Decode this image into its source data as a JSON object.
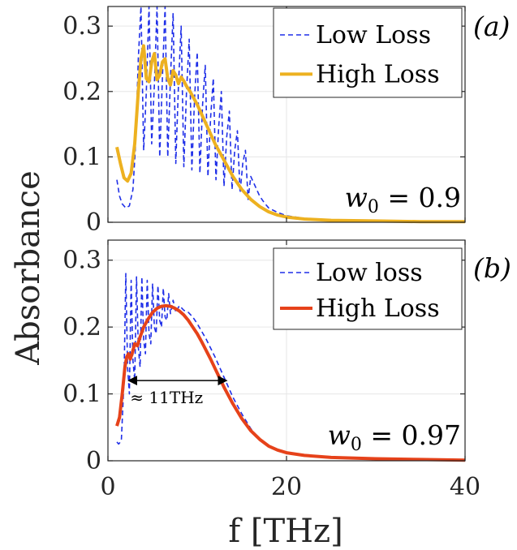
{
  "figure": {
    "ylabel": "Absorbance",
    "xlabel": "f [THz]"
  },
  "colors": {
    "low_loss": "#1f2fe8",
    "high_loss_a": "#edb120",
    "high_loss_b": "#e6421a",
    "axis": "#262626",
    "grid": "#e6e6e6"
  },
  "chart_data": [
    {
      "type": "line",
      "panel_label": "(a)",
      "annotation": "w0 = 0.9",
      "annotation_main": "w",
      "annotation_sub": "0",
      "annotation_rest": " = 0.9",
      "xlim": [
        0,
        40
      ],
      "ylim": [
        0,
        0.33
      ],
      "xticks": [
        0,
        20,
        40
      ],
      "yticks": [
        0,
        0.1,
        0.2,
        0.3
      ],
      "ytick_labels": [
        "0",
        "0.1",
        "0.2",
        "0.3"
      ],
      "xtick_labels_shown": false,
      "grid": true,
      "legend_position": "top-right",
      "series": [
        {
          "name": "Low Loss",
          "style": "dashed",
          "x": [
            1.0,
            1.3,
            1.6,
            2.0,
            2.4,
            2.8,
            3.1,
            3.4,
            3.7,
            4.0,
            4.3,
            4.6,
            4.9,
            5.2,
            5.5,
            5.8,
            6.1,
            6.4,
            6.7,
            7.0,
            7.3,
            7.6,
            7.9,
            8.2,
            8.5,
            8.8,
            9.1,
            9.4,
            9.7,
            10.0,
            10.3,
            10.6,
            10.9,
            11.2,
            11.5,
            11.8,
            12.1,
            12.4,
            12.7,
            13.0,
            13.3,
            13.6,
            13.9,
            14.2,
            14.5,
            14.8,
            15.1,
            15.4,
            15.7,
            16.0,
            16.5,
            17.0,
            17.5,
            18.0,
            19.0,
            20.0,
            22.0,
            25.0,
            30.0,
            35.0,
            40.0
          ],
          "y": [
            0.065,
            0.04,
            0.028,
            0.022,
            0.025,
            0.05,
            0.12,
            0.25,
            0.33,
            0.11,
            0.2,
            0.33,
            0.12,
            0.21,
            0.33,
            0.1,
            0.22,
            0.33,
            0.1,
            0.22,
            0.32,
            0.09,
            0.21,
            0.3,
            0.085,
            0.2,
            0.28,
            0.08,
            0.19,
            0.26,
            0.075,
            0.18,
            0.24,
            0.07,
            0.16,
            0.22,
            0.065,
            0.145,
            0.2,
            0.055,
            0.13,
            0.17,
            0.05,
            0.11,
            0.14,
            0.045,
            0.09,
            0.11,
            0.035,
            0.07,
            0.055,
            0.04,
            0.03,
            0.022,
            0.015,
            0.01,
            0.006,
            0.004,
            0.002,
            0.001,
            0.001
          ]
        },
        {
          "name": "High Loss",
          "style": "solid",
          "x": [
            1.0,
            1.4,
            1.8,
            2.2,
            2.6,
            3.0,
            3.4,
            3.7,
            4.0,
            4.3,
            4.6,
            4.9,
            5.2,
            5.5,
            5.8,
            6.1,
            6.4,
            6.7,
            7.0,
            7.3,
            7.6,
            7.9,
            8.2,
            8.5,
            8.8,
            9.2,
            9.6,
            10.0,
            10.5,
            11.0,
            11.5,
            12.0,
            13.0,
            14.0,
            15.0,
            16.0,
            17.0,
            18.0,
            19.0,
            20.0,
            22.0,
            25.0,
            30.0,
            35.0,
            40.0
          ],
          "y": [
            0.115,
            0.09,
            0.068,
            0.063,
            0.075,
            0.12,
            0.2,
            0.25,
            0.27,
            0.22,
            0.215,
            0.245,
            0.258,
            0.218,
            0.225,
            0.245,
            0.25,
            0.22,
            0.21,
            0.232,
            0.225,
            0.212,
            0.222,
            0.216,
            0.208,
            0.2,
            0.19,
            0.18,
            0.165,
            0.15,
            0.135,
            0.12,
            0.095,
            0.07,
            0.05,
            0.035,
            0.024,
            0.016,
            0.011,
            0.008,
            0.005,
            0.003,
            0.002,
            0.001,
            0.001
          ]
        }
      ]
    },
    {
      "type": "line",
      "panel_label": "(b)",
      "annotation": "w0 = 0.97",
      "annotation_main": "w",
      "annotation_sub": "0",
      "annotation_rest": " = 0.97",
      "bandwidth_label": "≈ 11THz",
      "bandwidth_range": [
        2.3,
        13.3
      ],
      "bandwidth_level": 0.12,
      "xlim": [
        0,
        40
      ],
      "ylim": [
        0,
        0.33
      ],
      "xticks": [
        0,
        20,
        40
      ],
      "xtick_labels": [
        "0",
        "20",
        "40"
      ],
      "yticks": [
        0,
        0.1,
        0.2,
        0.3
      ],
      "ytick_labels": [
        "0",
        "0.1",
        "0.2",
        "0.3"
      ],
      "grid": true,
      "legend_position": "top-right",
      "series": [
        {
          "name": "Low loss",
          "style": "dashed",
          "x": [
            1.0,
            1.2,
            1.5,
            1.8,
            2.0,
            2.2,
            2.4,
            2.6,
            2.8,
            3.0,
            3.2,
            3.4,
            3.6,
            3.8,
            4.0,
            4.2,
            4.4,
            4.6,
            4.8,
            5.0,
            5.2,
            5.4,
            5.6,
            5.8,
            6.0,
            6.2,
            6.4,
            6.6,
            6.8,
            7.0,
            7.3,
            7.6,
            8.0,
            8.5,
            9.0,
            9.5,
            10.0,
            11.0,
            12.0,
            13.0,
            14.0,
            15.0,
            16.0,
            17.0,
            18.0,
            19.0,
            20.0,
            22.0,
            25.0,
            30.0,
            35.0,
            40.0
          ],
          "y": [
            0.028,
            0.025,
            0.03,
            0.12,
            0.28,
            0.14,
            0.1,
            0.27,
            0.15,
            0.12,
            0.275,
            0.17,
            0.14,
            0.275,
            0.18,
            0.16,
            0.27,
            0.19,
            0.175,
            0.265,
            0.2,
            0.19,
            0.262,
            0.21,
            0.2,
            0.258,
            0.215,
            0.21,
            0.25,
            0.22,
            0.24,
            0.222,
            0.232,
            0.225,
            0.222,
            0.215,
            0.205,
            0.182,
            0.155,
            0.125,
            0.095,
            0.07,
            0.048,
            0.032,
            0.022,
            0.015,
            0.011,
            0.007,
            0.004,
            0.002,
            0.001,
            0.001
          ]
        },
        {
          "name": "High Loss",
          "style": "solid",
          "x": [
            1.0,
            1.3,
            1.6,
            1.9,
            2.1,
            2.3,
            2.5,
            2.7,
            3.0,
            3.3,
            3.6,
            4.0,
            4.5,
            5.0,
            5.5,
            6.0,
            6.5,
            7.0,
            7.5,
            8.0,
            8.5,
            9.0,
            9.5,
            10.0,
            10.5,
            11.0,
            11.5,
            12.0,
            12.5,
            13.0,
            14.0,
            15.0,
            16.0,
            17.0,
            18.0,
            19.0,
            20.0,
            22.0,
            25.0,
            30.0,
            35.0,
            40.0
          ],
          "y": [
            0.052,
            0.065,
            0.1,
            0.14,
            0.155,
            0.16,
            0.152,
            0.16,
            0.175,
            0.172,
            0.185,
            0.2,
            0.212,
            0.222,
            0.228,
            0.231,
            0.232,
            0.231,
            0.228,
            0.224,
            0.218,
            0.21,
            0.2,
            0.19,
            0.178,
            0.165,
            0.152,
            0.138,
            0.124,
            0.11,
            0.085,
            0.063,
            0.045,
            0.032,
            0.022,
            0.016,
            0.012,
            0.008,
            0.005,
            0.003,
            0.002,
            0.001
          ]
        }
      ]
    }
  ]
}
